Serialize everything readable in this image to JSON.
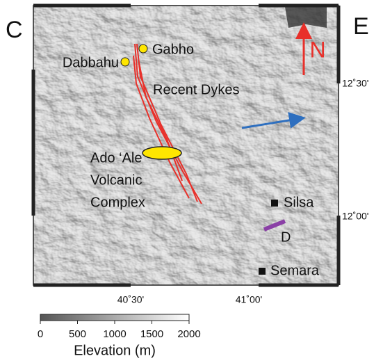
{
  "panel_labels": {
    "left": "C",
    "right": "E"
  },
  "places": [
    {
      "name": "Gabho"
    },
    {
      "name": "Dabbahu"
    },
    {
      "name": "Silsa"
    },
    {
      "name": "Semara"
    }
  ],
  "north": "N",
  "annotations": {
    "dykes": "Recent Dykes",
    "volcano": [
      "Ado ‘Ale",
      "Volcanic",
      "Complex"
    ],
    "feature": "D"
  },
  "lat_labels": [
    "12˚30'",
    "12˚00'"
  ],
  "lon_labels": [
    "40˚30'",
    "41˚00'"
  ],
  "colorbar": {
    "ticks": [
      0,
      500,
      1000,
      1500,
      2000
    ],
    "title": "Elevation (m)"
  }
}
